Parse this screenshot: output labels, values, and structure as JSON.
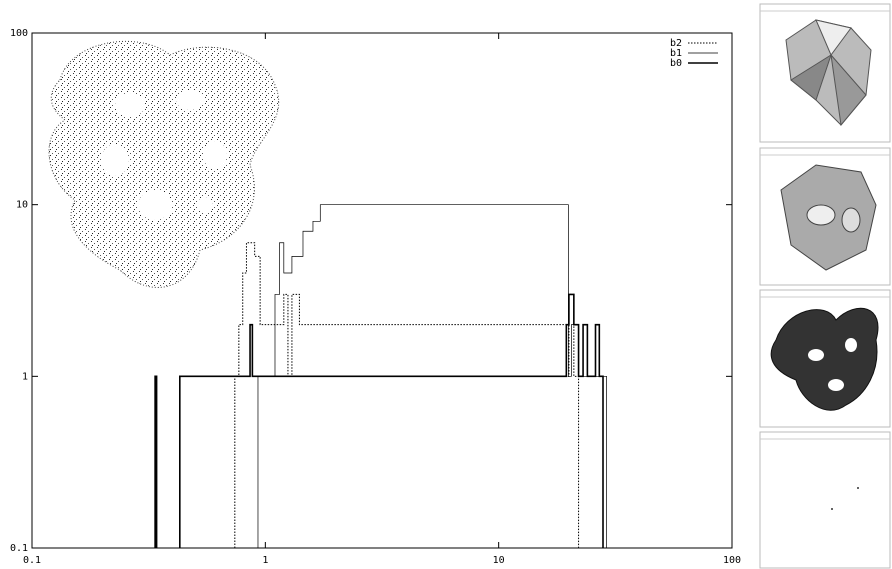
{
  "chart_data": {
    "type": "step",
    "xscale": "log",
    "yscale": "log",
    "xlim": [
      0.1,
      100
    ],
    "ylim": [
      0.1,
      100
    ],
    "xticks": [
      0.1,
      1,
      10,
      100
    ],
    "yticks": [
      0.1,
      1,
      10,
      100
    ],
    "legend": "top-right",
    "series": [
      {
        "name": "b2",
        "style": "dotted",
        "color": "#000000",
        "x": [
          0.74,
          0.77,
          0.8,
          0.83,
          0.9,
          0.95,
          1.15,
          1.2,
          1.25,
          1.3,
          1.4,
          1.5,
          19.5,
          20,
          21,
          22
        ],
        "values": [
          1,
          2,
          4,
          6,
          5,
          2,
          2,
          3,
          1,
          3,
          2,
          2,
          1,
          3,
          1,
          1
        ]
      },
      {
        "name": "b1",
        "style": "thin",
        "color": "#000000",
        "x": [
          0.93,
          1.1,
          1.15,
          1.2,
          1.3,
          1.45,
          1.6,
          1.72,
          19.4,
          19.9,
          20.5,
          22,
          25,
          29
        ],
        "values": [
          1,
          3,
          6,
          4,
          5,
          7,
          8,
          10,
          10,
          1,
          2,
          1,
          1,
          1
        ]
      },
      {
        "name": "b0",
        "style": "thick",
        "color": "#000000",
        "x": [
          0.337,
          0.342,
          0.43,
          0.86,
          0.88,
          19.5,
          20,
          21,
          22,
          23,
          24,
          26,
          27,
          28
        ],
        "values": [
          1,
          null,
          1,
          2,
          1,
          2,
          3,
          2,
          1,
          2,
          1,
          2,
          1,
          1
        ]
      }
    ]
  }
}
